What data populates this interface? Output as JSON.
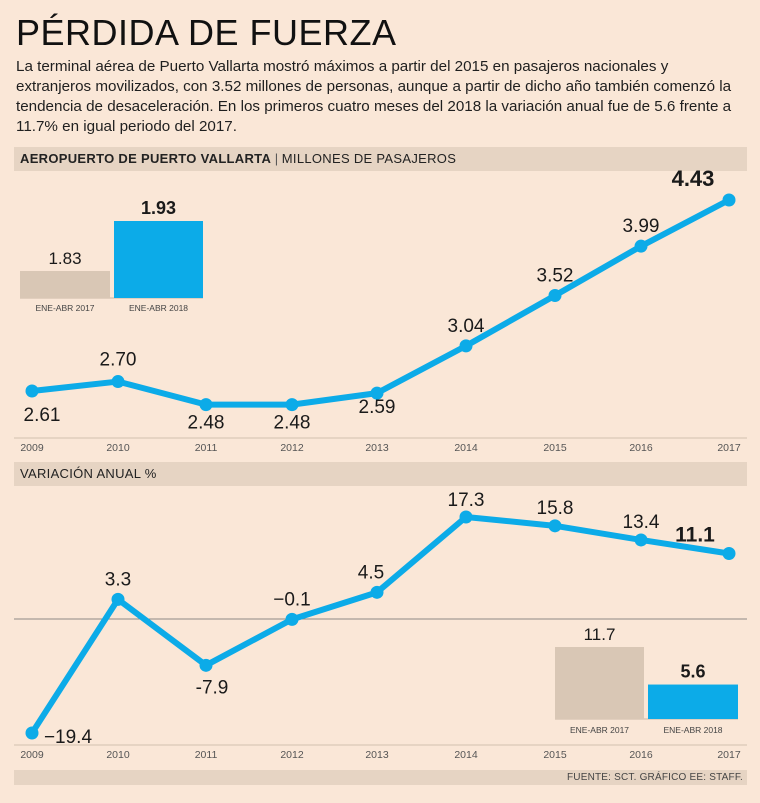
{
  "header": {
    "title": "PÉRDIDA DE FUERZA",
    "intro": "La terminal aérea de Puerto Vallarta mostró máximos a partir del 2015 en pasajeros nacionales y extranjeros movilizados, con 3.52 millones de personas, aunque a partir de dicho año también comenzó la tendencia de desaceleración. En los primeros cuatro meses del 2018 la variación anual fue de 5.6 frente a 11.7% en igual periodo del 2017."
  },
  "section1": {
    "label_bold": "AEROPUERTO DE PUERTO VALLARTA",
    "separator": "|",
    "label": "MILLONES DE PASAJEROS"
  },
  "section2": {
    "label": "VARIACIÓN ANUAL %"
  },
  "footer": {
    "source": "FUENTE: SCT.  GRÁFICO EE: STAFF."
  },
  "colors": {
    "line": "#0cabe8",
    "bar_prev": "#d9c7b5",
    "bar_curr": "#0cabe8",
    "background": "#fae7d7",
    "band": "#e6d4c3"
  },
  "chart_data": [
    {
      "type": "line",
      "categories": [
        "2009",
        "2010",
        "2011",
        "2012",
        "2013",
        "2014",
        "2015",
        "2016",
        "2017"
      ],
      "series": [
        {
          "values": [
            2.61,
            2.7,
            2.48,
            2.48,
            2.59,
            3.04,
            3.52,
            3.99,
            4.43
          ]
        }
      ],
      "labels": [
        "2.61",
        "2.70",
        "2.48",
        "2.48",
        "2.59",
        "3.04",
        "3.52",
        "3.99",
        "4.43"
      ],
      "ylim": [
        2.3,
        4.5
      ]
    },
    {
      "type": "bar",
      "categories": [
        "ENE-ABR 2017",
        "ENE-ABR 2018"
      ],
      "values": [
        1.83,
        1.93
      ],
      "labels": [
        "1.83",
        "1.93"
      ]
    },
    {
      "type": "line",
      "categories": [
        "2009",
        "2010",
        "2011",
        "2012",
        "2013",
        "2014",
        "2015",
        "2016",
        "2017"
      ],
      "series": [
        {
          "values": [
            -19.4,
            3.3,
            -7.9,
            -0.1,
            4.5,
            17.3,
            15.8,
            13.4,
            11.1
          ]
        }
      ],
      "labels": [
        "−19.4",
        "3.3",
        "-7.9",
        "−0.1",
        "4.5",
        "17.3",
        "15.8",
        "13.4",
        "11.1"
      ],
      "ylim": [
        -20,
        18
      ]
    },
    {
      "type": "bar",
      "categories": [
        "ENE-ABR 2017",
        "ENE-ABR 2018"
      ],
      "values": [
        11.7,
        5.6
      ],
      "labels": [
        "11.7",
        "5.6"
      ]
    }
  ]
}
